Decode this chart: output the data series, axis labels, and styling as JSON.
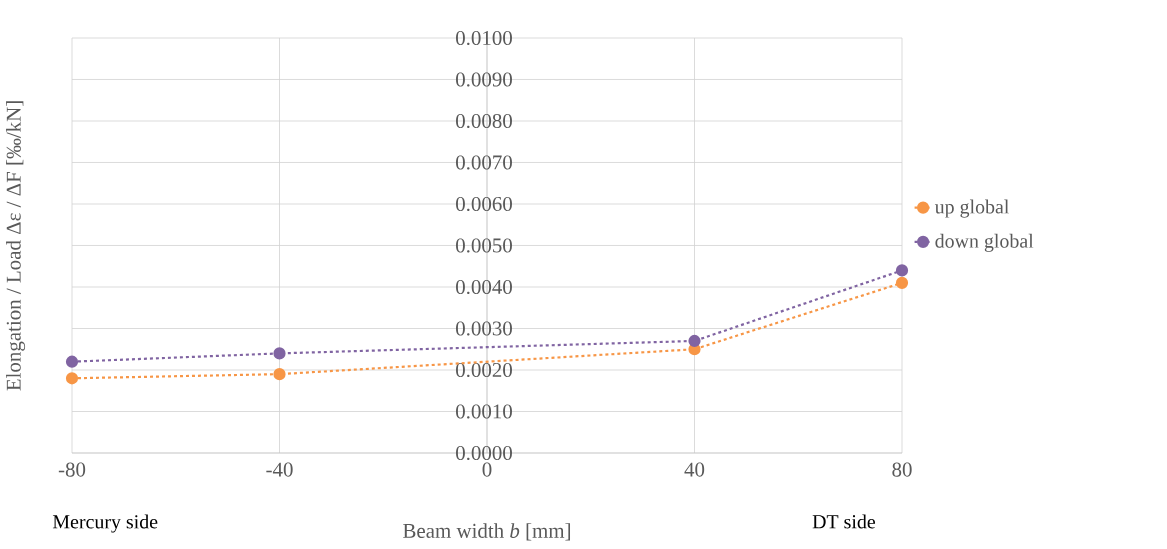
{
  "chart_data": {
    "type": "line",
    "xlabel": "Beam width *b* [mm]",
    "ylabel": "Elongation / Load Δε / ΔF [‰/kN]",
    "x": [
      -80,
      -40,
      40,
      80
    ],
    "series": [
      {
        "name": "up global",
        "color": "#f79646",
        "values": [
          0.0018,
          0.0019,
          0.0025,
          0.0041
        ]
      },
      {
        "name": "down global",
        "color": "#8064a2",
        "values": [
          0.0022,
          0.0024,
          0.0027,
          0.0044
        ]
      }
    ],
    "xlim": [
      -80,
      80
    ],
    "xticks": [
      -80,
      -40,
      0,
      40,
      80
    ],
    "ylim": [
      0,
      0.01
    ],
    "yticks": [
      {
        "value": 0,
        "label": "0.0000"
      },
      {
        "value": 0.001,
        "label": "0.0010"
      },
      {
        "value": 0.002,
        "label": "0.0020"
      },
      {
        "value": 0.003,
        "label": "0.0030"
      },
      {
        "value": 0.004,
        "label": "0.0040"
      },
      {
        "value": 0.005,
        "label": "0.0050"
      },
      {
        "value": 0.006,
        "label": "0.0060"
      },
      {
        "value": 0.007,
        "label": "0.0070"
      },
      {
        "value": 0.008,
        "label": "0.0080"
      },
      {
        "value": 0.009,
        "label": "0.0090"
      },
      {
        "value": 0.01,
        "label": "0.0100"
      }
    ],
    "annotations": [
      "Mercury side",
      "DT side"
    ],
    "grid": true,
    "legend": "right",
    "marker": "circle",
    "line_style": "dotted"
  }
}
